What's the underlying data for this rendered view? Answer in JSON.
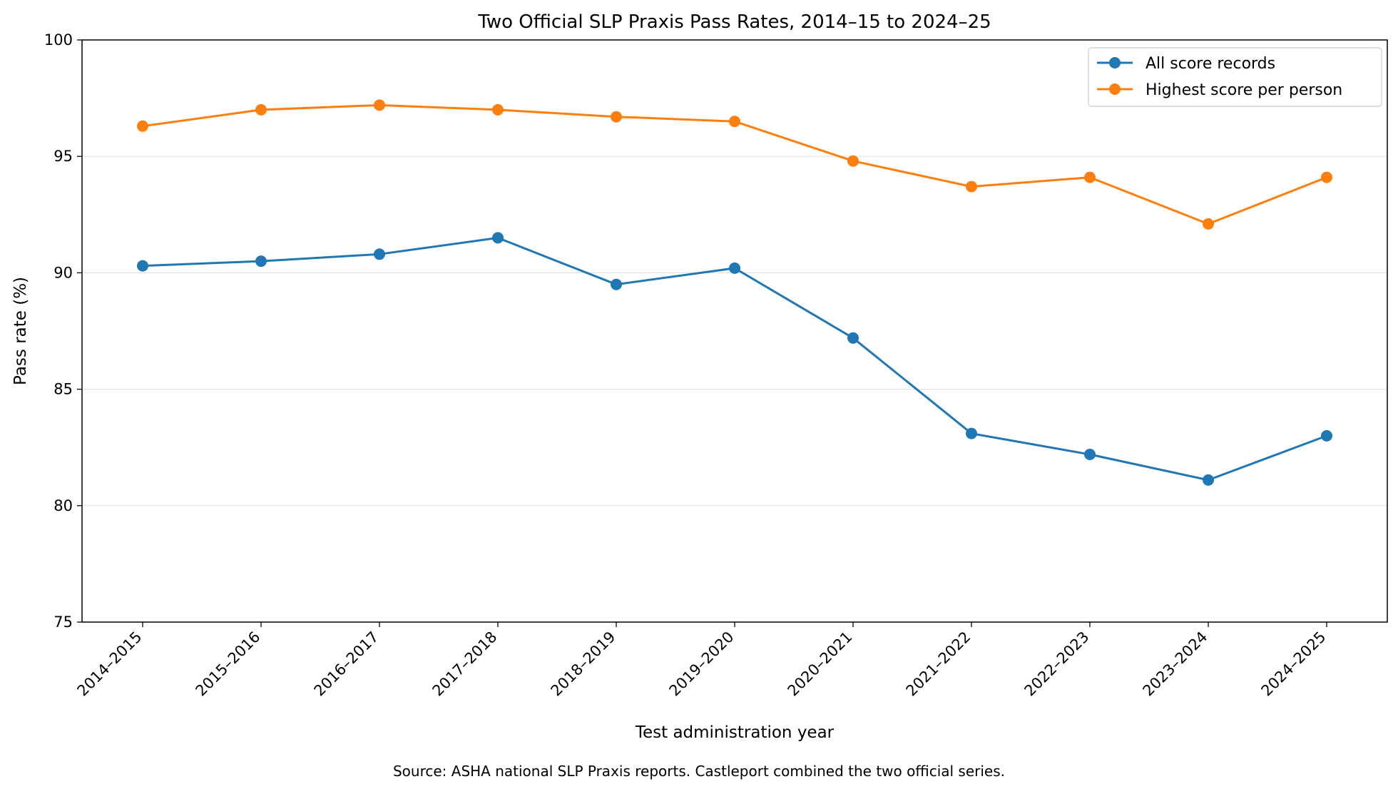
{
  "chart_data": {
    "type": "line",
    "title": "Two Official SLP Praxis Pass Rates, 2014–15 to 2024–25",
    "xlabel": "Test administration year",
    "ylabel": "Pass rate (%)",
    "categories": [
      "2014–2015",
      "2015–2016",
      "2016–2017",
      "2017–2018",
      "2018–2019",
      "2019–2020",
      "2020–2021",
      "2021–2022",
      "2022–2023",
      "2023–2024",
      "2024–2025"
    ],
    "ylim": [
      75,
      100
    ],
    "yticks": [
      75,
      80,
      85,
      90,
      95,
      100
    ],
    "grid": "horizontal",
    "legend_position": "top-right",
    "series": [
      {
        "name": "All score records",
        "color": "#1f77b4",
        "values": [
          90.3,
          90.5,
          90.8,
          91.5,
          89.5,
          90.2,
          87.2,
          83.1,
          82.2,
          81.1,
          83.0
        ]
      },
      {
        "name": "Highest score per person",
        "color": "#ff7f0e",
        "values": [
          96.3,
          97.0,
          97.2,
          97.0,
          96.7,
          96.5,
          94.8,
          93.7,
          94.1,
          92.1,
          94.1
        ]
      }
    ],
    "source_note": "Source: ASHA national SLP Praxis reports. Castleport combined the two official series."
  }
}
